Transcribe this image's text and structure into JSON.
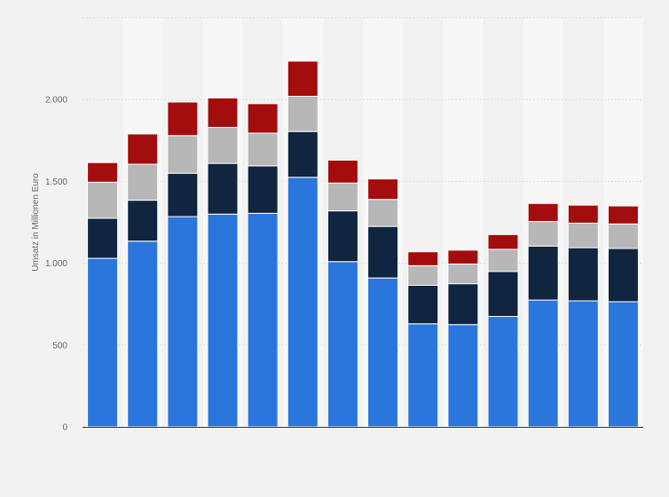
{
  "chart_data": {
    "type": "bar",
    "stacked": true,
    "title": "",
    "xlabel": "",
    "ylabel": "Umsatz in Millionen Euro",
    "ylim": [
      0,
      2500
    ],
    "yticks": [
      0,
      500,
      1000,
      1500,
      2000
    ],
    "ytick_labels": [
      "0",
      "500",
      "1.000",
      "1.500",
      "2.000"
    ],
    "grid": true,
    "legend": "none",
    "categories": [
      "",
      "",
      "",
      "",
      "",
      "",
      "",
      "",
      "",
      "",
      "",
      "",
      "",
      ""
    ],
    "series": [
      {
        "color": "#2a76dd",
        "values": [
          1030,
          1135,
          1285,
          1300,
          1305,
          1525,
          1010,
          910,
          630,
          625,
          675,
          775,
          770,
          765
        ]
      },
      {
        "color": "#0f2540",
        "values": [
          245,
          250,
          265,
          310,
          290,
          280,
          310,
          315,
          235,
          250,
          275,
          330,
          325,
          325
        ]
      },
      {
        "color": "#b7b7b7",
        "values": [
          220,
          220,
          230,
          220,
          200,
          215,
          170,
          165,
          120,
          120,
          135,
          150,
          150,
          150
        ]
      },
      {
        "color": "#a30d0d",
        "values": [
          120,
          185,
          205,
          180,
          180,
          215,
          140,
          125,
          85,
          85,
          90,
          110,
          110,
          110
        ]
      }
    ]
  }
}
